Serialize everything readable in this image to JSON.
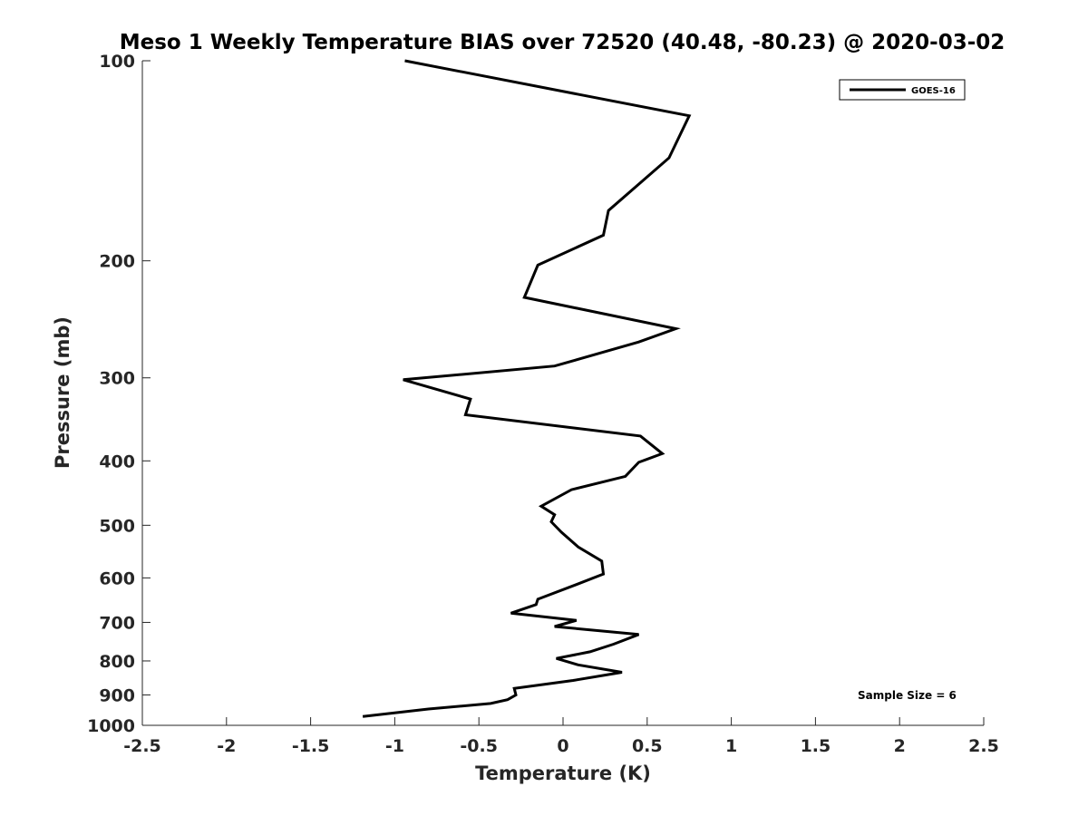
{
  "chart_data": {
    "type": "line",
    "title": "Meso 1 Weekly Temperature BIAS over 72520 (40.48, -80.23) @ 2020-03-02",
    "xlabel": "Temperature (K)",
    "ylabel": "Pressure (mb)",
    "xlim": [
      -2.5,
      2.5
    ],
    "ylim": [
      100,
      1000
    ],
    "y_scale": "log",
    "y_reversed": true,
    "x_ticks": [
      -2.5,
      -2,
      -1.5,
      -1,
      -0.5,
      0,
      0.5,
      1,
      1.5,
      2,
      2.5
    ],
    "x_tick_labels": [
      "-2.5",
      "-2",
      "-1.5",
      "-1",
      "-0.5",
      "0",
      "0.5",
      "1",
      "1.5",
      "2",
      "2.5"
    ],
    "y_ticks": [
      100,
      200,
      300,
      400,
      500,
      600,
      700,
      800,
      900,
      1000
    ],
    "y_tick_labels": [
      "100",
      "200",
      "300",
      "400",
      "500",
      "600",
      "700",
      "800",
      "900",
      "1000"
    ],
    "grid": false,
    "legend_position": "top-right",
    "series": [
      {
        "name": "GOES-16",
        "color": "#000000",
        "x": [
          -0.94,
          0.75,
          0.63,
          0.27,
          0.24,
          -0.15,
          -0.23,
          0.67,
          0.45,
          -0.05,
          -0.95,
          -0.55,
          -0.58,
          0.46,
          0.59,
          0.45,
          0.37,
          0.05,
          -0.13,
          -0.05,
          -0.07,
          -0.01,
          0.09,
          0.23,
          0.24,
          0.08,
          -0.15,
          -0.16,
          -0.31,
          0.08,
          -0.05,
          0.45,
          0.3,
          0.16,
          -0.04,
          0.09,
          0.35,
          0.06,
          -0.29,
          -0.28,
          -0.33,
          -0.43,
          -0.8,
          -1.19
        ],
        "y": [
          100,
          121,
          140,
          168,
          183,
          203,
          227,
          253,
          265,
          288,
          302,
          323,
          341,
          367,
          390,
          402,
          422,
          442,
          468,
          482,
          494,
          512,
          539,
          566,
          592,
          614,
          646,
          658,
          678,
          695,
          710,
          730,
          755,
          775,
          793,
          811,
          832,
          856,
          880,
          900,
          915,
          927,
          945,
          970
        ]
      }
    ],
    "annotations": [
      "Sample Size = 6"
    ]
  }
}
